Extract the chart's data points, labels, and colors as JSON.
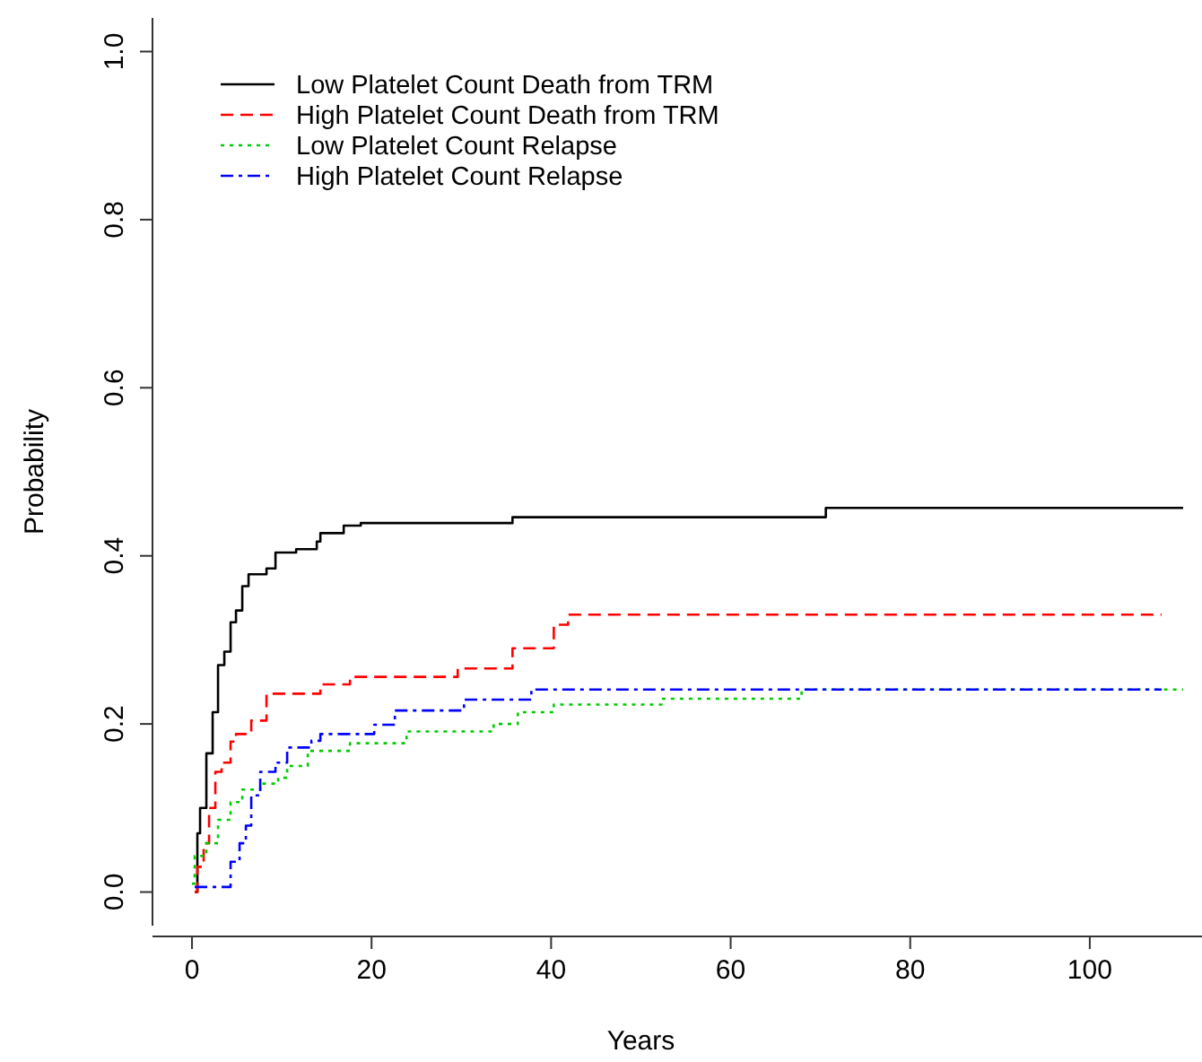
{
  "chart_data": {
    "type": "step",
    "xlabel": "Years",
    "ylabel": "Probability",
    "xlim": [
      -4.4,
      112.5
    ],
    "ylim": [
      -0.04,
      1.04
    ],
    "xticks": [
      0,
      20,
      40,
      60,
      80,
      100
    ],
    "yticks": [
      {
        "value": 0,
        "label": "0.0"
      },
      {
        "value": 0.2,
        "label": "0.2"
      },
      {
        "value": 0.4,
        "label": "0.4"
      },
      {
        "value": 0.6,
        "label": "0.6"
      },
      {
        "value": 0.8,
        "label": "0.8"
      },
      {
        "value": 1,
        "label": "1.0"
      }
    ],
    "grid": false,
    "legend": "top left",
    "series": [
      {
        "name": "Low Platelet Count Death from TRM",
        "color": "#000000",
        "line_style": "solid",
        "x": [
          0.3,
          0.6,
          0.9,
          1.6,
          2.3,
          2.9,
          3.6,
          4.3,
          4.9,
          5.6,
          6.3,
          8.3,
          9.3,
          11.6,
          13.9,
          14.3,
          16.9,
          18.8,
          35.7,
          70.6,
          110.4
        ],
        "values": [
          0,
          0.07,
          0.1,
          0.165,
          0.214,
          0.27,
          0.286,
          0.321,
          0.335,
          0.364,
          0.378,
          0.385,
          0.404,
          0.408,
          0.417,
          0.427,
          0.436,
          0.439,
          0.446,
          0.457,
          0.457
        ]
      },
      {
        "name": "High Platelet Count Death from TRM",
        "color": "#ff0000",
        "line_style": "dashed",
        "x": [
          0.3,
          0.6,
          1.3,
          1.9,
          2.6,
          3.3,
          4.3,
          4.9,
          6.6,
          8.3,
          14.3,
          17.6,
          29.6,
          35.7,
          40.3,
          41.9,
          108
        ],
        "values": [
          0,
          0.03,
          0.058,
          0.1,
          0.143,
          0.154,
          0.179,
          0.188,
          0.204,
          0.236,
          0.247,
          0.256,
          0.266,
          0.29,
          0.318,
          0.33,
          0.33
        ]
      },
      {
        "name": "Low Platelet Count Relapse",
        "color": "#00cc00",
        "line_style": "dotted",
        "x": [
          0,
          0.3,
          1.6,
          2.9,
          4.3,
          5.6,
          7.6,
          9.6,
          10.6,
          12.9,
          17.6,
          23.9,
          33.6,
          36.3,
          40.3,
          52.3,
          67.9,
          110.4
        ],
        "values": [
          0.01,
          0.043,
          0.058,
          0.086,
          0.107,
          0.122,
          0.129,
          0.136,
          0.15,
          0.168,
          0.177,
          0.191,
          0.2,
          0.214,
          0.223,
          0.23,
          0.241,
          0.241
        ]
      },
      {
        "name": "High Platelet Count Relapse",
        "color": "#0000ff",
        "line_style": "dashdot",
        "x": [
          0.3,
          3.3,
          4.3,
          5.3,
          6,
          6.6,
          7.6,
          9.3,
          10.6,
          13.3,
          14.3,
          20.3,
          22.6,
          30.3,
          37.8,
          108
        ],
        "values": [
          0.006,
          0.006,
          0.036,
          0.058,
          0.079,
          0.115,
          0.143,
          0.154,
          0.172,
          0.18,
          0.188,
          0.199,
          0.216,
          0.229,
          0.241,
          0.241
        ]
      }
    ]
  }
}
